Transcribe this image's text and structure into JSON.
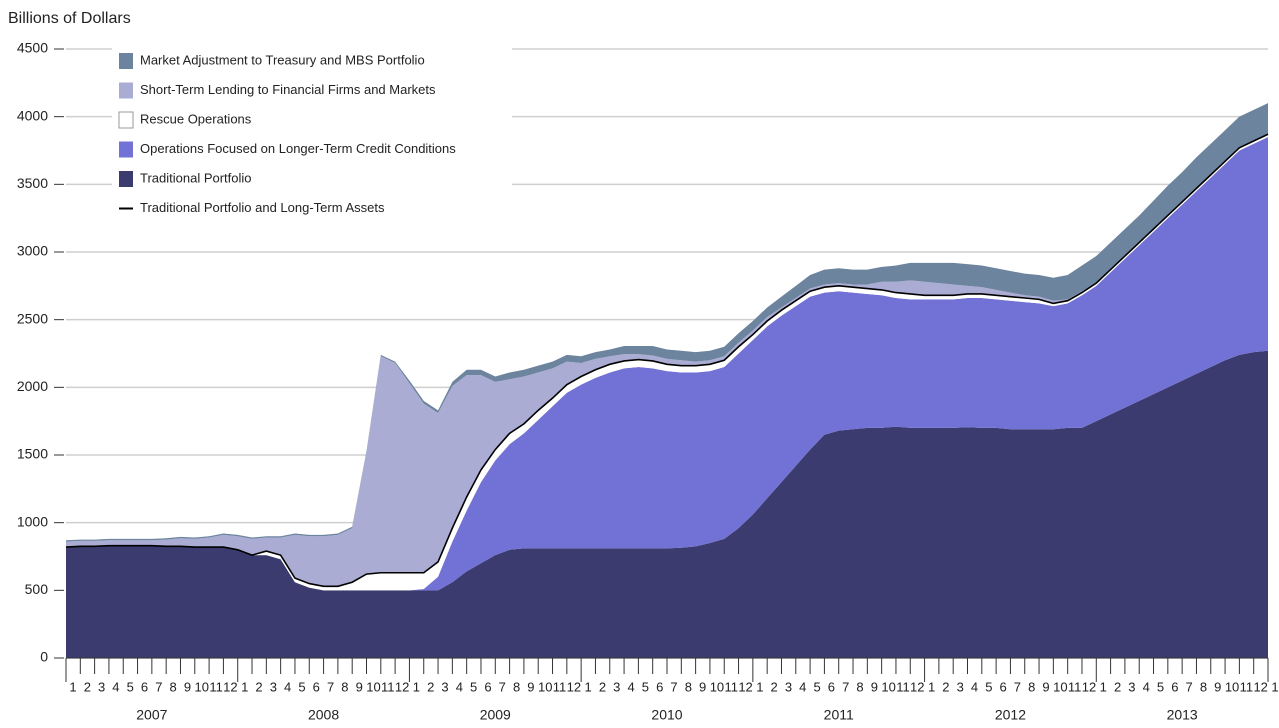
{
  "chart_data": {
    "type": "stacked_area",
    "y_axis_label": "Billions of Dollars",
    "categories": [
      "1",
      "2",
      "3",
      "4",
      "5",
      "6",
      "7",
      "8",
      "9",
      "10",
      "11",
      "12",
      "1",
      "2",
      "3",
      "4",
      "5",
      "6",
      "7",
      "8",
      "9",
      "10",
      "11",
      "12",
      "1",
      "2",
      "3",
      "4",
      "5",
      "6",
      "7",
      "8",
      "9",
      "10",
      "11",
      "12",
      "1",
      "2",
      "3",
      "4",
      "5",
      "6",
      "7",
      "8",
      "9",
      "10",
      "11",
      "12",
      "1",
      "2",
      "3",
      "4",
      "5",
      "6",
      "7",
      "8",
      "9",
      "10",
      "11",
      "12",
      "1",
      "2",
      "3",
      "4",
      "5",
      "6",
      "7",
      "8",
      "9",
      "10",
      "11",
      "12",
      "1",
      "2",
      "3",
      "4",
      "5",
      "6",
      "7",
      "8",
      "9",
      "10",
      "11",
      "12",
      "1"
    ],
    "year_labels": [
      "2007",
      "2008",
      "2009",
      "2010",
      "2011",
      "2012",
      "2013"
    ],
    "ylim": [
      0,
      4500
    ],
    "yticks": [
      0,
      500,
      1000,
      1500,
      2000,
      2500,
      3000,
      3500,
      4000,
      4500
    ],
    "grid": true,
    "series": [
      {
        "name": "Traditional Portfolio",
        "color": "#3b3b70",
        "values": [
          820,
          825,
          825,
          830,
          830,
          830,
          830,
          825,
          825,
          820,
          820,
          820,
          800,
          760,
          760,
          730,
          560,
          520,
          500,
          500,
          500,
          500,
          500,
          500,
          500,
          500,
          500,
          560,
          640,
          700,
          760,
          800,
          810,
          810,
          810,
          810,
          810,
          810,
          810,
          810,
          810,
          810,
          810,
          815,
          825,
          850,
          880,
          960,
          1060,
          1180,
          1300,
          1420,
          1540,
          1650,
          1680,
          1690,
          1700,
          1700,
          1710,
          1700,
          1700,
          1700,
          1700,
          1705,
          1700,
          1700,
          1690,
          1690,
          1690,
          1690,
          1700,
          1700,
          1750,
          1800,
          1850,
          1900,
          1950,
          2000,
          2050,
          2100,
          2150,
          2200,
          2240,
          2260,
          2270
        ]
      },
      {
        "name": "Operations Focused on Longer-Term Credit Conditions",
        "color": "#7272d6",
        "values": [
          0,
          0,
          0,
          0,
          0,
          0,
          0,
          0,
          0,
          0,
          0,
          0,
          0,
          0,
          0,
          0,
          0,
          0,
          0,
          0,
          0,
          0,
          0,
          0,
          0,
          10,
          100,
          300,
          450,
          600,
          700,
          780,
          850,
          950,
          1050,
          1150,
          1210,
          1260,
          1300,
          1330,
          1340,
          1330,
          1310,
          1295,
          1285,
          1270,
          1270,
          1290,
          1290,
          1270,
          1230,
          1180,
          1130,
          1050,
          1030,
          1010,
          990,
          980,
          950,
          950,
          950,
          950,
          950,
          955,
          960,
          950,
          950,
          940,
          930,
          910,
          920,
          980,
          1000,
          1050,
          1100,
          1150,
          1200,
          1250,
          1300,
          1350,
          1400,
          1450,
          1510,
          1540,
          1580
        ]
      },
      {
        "name": "Rescue Operations",
        "color": "#ffffff",
        "values": [
          0,
          0,
          0,
          0,
          0,
          0,
          0,
          0,
          0,
          0,
          0,
          0,
          0,
          0,
          30,
          30,
          30,
          30,
          30,
          30,
          60,
          120,
          130,
          130,
          130,
          120,
          110,
          100,
          100,
          90,
          80,
          80,
          70,
          70,
          60,
          60,
          60,
          60,
          60,
          55,
          55,
          55,
          50,
          50,
          50,
          50,
          50,
          50,
          40,
          40,
          40,
          40,
          40,
          40,
          40,
          40,
          40,
          40,
          40,
          40,
          30,
          30,
          30,
          30,
          30,
          30,
          30,
          30,
          30,
          20,
          20,
          20,
          20,
          20,
          20,
          20,
          20,
          20,
          20,
          20,
          20,
          20,
          20,
          20,
          20
        ]
      },
      {
        "name": "Short-Term Lending to Financial Firms and Markets",
        "color": "#abacd4",
        "values": [
          40,
          40,
          40,
          40,
          40,
          40,
          40,
          50,
          60,
          60,
          70,
          90,
          100,
          120,
          100,
          130,
          320,
          350,
          370,
          380,
          400,
          900,
          1600,
          1550,
          1400,
          1250,
          1100,
          1050,
          900,
          700,
          500,
          400,
          350,
          280,
          220,
          170,
          100,
          80,
          60,
          50,
          40,
          40,
          40,
          40,
          30,
          30,
          30,
          30,
          30,
          30,
          20,
          20,
          20,
          20,
          20,
          20,
          30,
          60,
          80,
          100,
          100,
          90,
          80,
          60,
          50,
          40,
          30,
          20,
          20,
          20,
          10,
          10,
          0,
          0,
          0,
          0,
          0,
          0,
          0,
          0,
          0,
          0,
          0,
          0,
          0
        ]
      },
      {
        "name": "Market Adjustment to Treasury and MBS Portfolio",
        "color": "#6d849f",
        "values": [
          10,
          10,
          10,
          10,
          10,
          10,
          10,
          10,
          10,
          10,
          10,
          10,
          10,
          10,
          10,
          10,
          10,
          10,
          10,
          10,
          10,
          10,
          10,
          10,
          20,
          20,
          20,
          30,
          40,
          40,
          40,
          50,
          50,
          50,
          50,
          50,
          50,
          50,
          50,
          60,
          60,
          70,
          70,
          70,
          70,
          70,
          70,
          70,
          70,
          70,
          80,
          90,
          100,
          110,
          110,
          110,
          110,
          110,
          120,
          130,
          140,
          150,
          160,
          160,
          160,
          160,
          160,
          160,
          160,
          170,
          180,
          190,
          200,
          200,
          200,
          200,
          210,
          220,
          220,
          230,
          230,
          230,
          230,
          230,
          230
        ]
      }
    ],
    "line_series": {
      "name": "Traditional Portfolio and Long-Term Assets",
      "color": "#000000",
      "values": [
        820,
        825,
        825,
        830,
        830,
        830,
        830,
        825,
        825,
        820,
        820,
        820,
        800,
        760,
        790,
        760,
        590,
        550,
        530,
        530,
        560,
        620,
        630,
        630,
        630,
        630,
        710,
        960,
        1190,
        1390,
        1540,
        1660,
        1730,
        1830,
        1920,
        2020,
        2080,
        2130,
        2170,
        2195,
        2205,
        2195,
        2170,
        2160,
        2160,
        2170,
        2200,
        2300,
        2390,
        2490,
        2570,
        2640,
        2710,
        2740,
        2750,
        2740,
        2730,
        2720,
        2700,
        2690,
        2680,
        2680,
        2680,
        2690,
        2690,
        2680,
        2670,
        2660,
        2650,
        2620,
        2640,
        2700,
        2770,
        2870,
        2970,
        3070,
        3170,
        3270,
        3370,
        3470,
        3570,
        3670,
        3770,
        3820,
        3870
      ]
    }
  }
}
